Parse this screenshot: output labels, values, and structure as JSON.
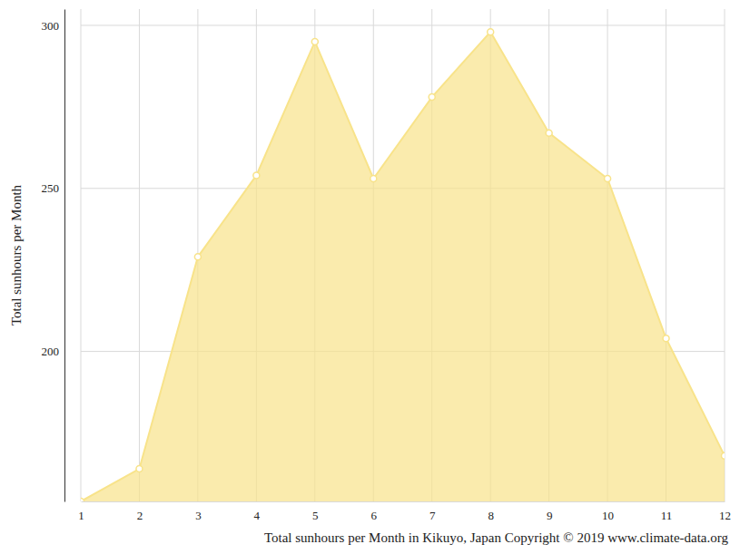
{
  "chart_data": {
    "type": "area",
    "title": "Total sunhours per Month in Kikuyo, Japan Copyright © 2019 www.climate-data.org",
    "y_label": "Total sunhours per Month",
    "x": [
      1,
      2,
      3,
      4,
      5,
      6,
      7,
      8,
      9,
      10,
      11,
      12
    ],
    "values": [
      154,
      164,
      229,
      254,
      295,
      253,
      278,
      298,
      267,
      253,
      204,
      168
    ],
    "color": "#f8e38a",
    "marker": "circle",
    "xlim": [
      1,
      12
    ],
    "xticks": [
      1,
      2,
      3,
      4,
      5,
      6,
      7,
      8,
      9,
      10,
      11,
      12
    ],
    "ylim": [
      154,
      305
    ],
    "yticks": [
      200,
      250,
      300
    ],
    "grid": true
  }
}
